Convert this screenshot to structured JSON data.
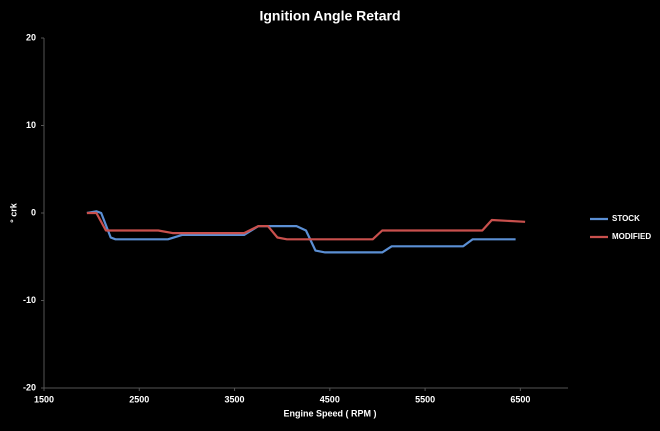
{
  "chart_data": {
    "type": "line",
    "title": "Ignition Angle Retard",
    "x_label": "Engine Speed ( RPM )",
    "y_label": "° crk",
    "xlim": [
      1500,
      7000
    ],
    "xticks": [
      1500,
      2500,
      3500,
      4500,
      5500,
      6500
    ],
    "ylim": [
      -20,
      20
    ],
    "yticks": [
      -20,
      -10,
      0,
      10,
      20
    ],
    "legend": "right",
    "series": [
      {
        "name": "STOCK",
        "color": "#5b8fd4",
        "x": [
          1950,
          2050,
          2100,
          2200,
          2250,
          2800,
          2950,
          3600,
          3750,
          4150,
          4250,
          4350,
          4450,
          5050,
          5150,
          5900,
          6000,
          6450
        ],
        "values": [
          0,
          0.2,
          0,
          -2.8,
          -3,
          -3,
          -2.5,
          -2.5,
          -1.5,
          -1.5,
          -2,
          -4.3,
          -4.5,
          -4.5,
          -3.8,
          -3.8,
          -3,
          -3
        ]
      },
      {
        "name": "MODIFIED",
        "color": "#c9504d",
        "x": [
          1950,
          2050,
          2150,
          2700,
          2850,
          3600,
          3750,
          3850,
          3950,
          4050,
          4950,
          5050,
          6100,
          6200,
          6550
        ],
        "values": [
          0,
          0,
          -2,
          -2,
          -2.3,
          -2.3,
          -1.5,
          -1.5,
          -2.8,
          -3,
          -3,
          -2,
          -2,
          -0.8,
          -1
        ]
      }
    ]
  }
}
